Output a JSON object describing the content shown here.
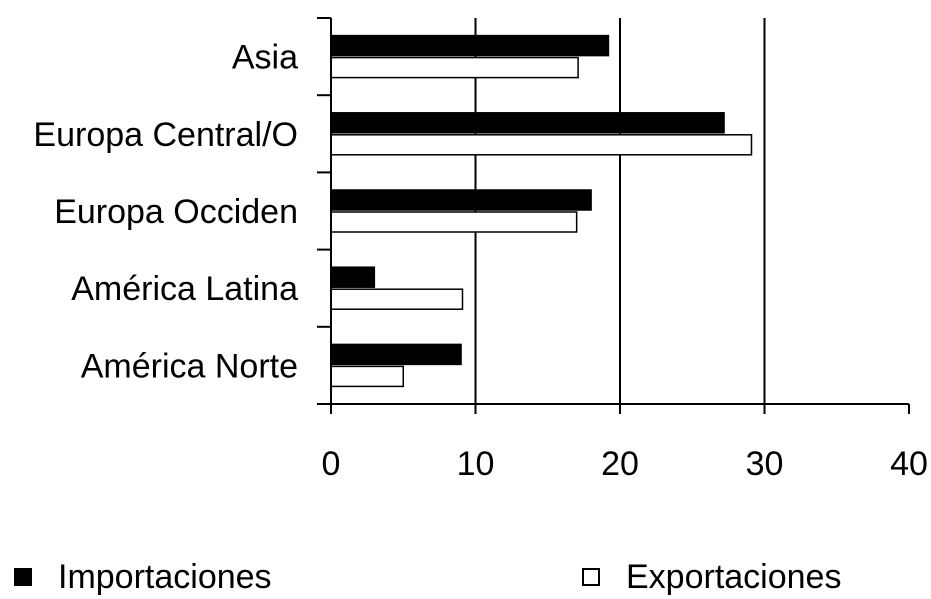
{
  "chart_data": {
    "type": "bar",
    "orientation": "horizontal",
    "categories": [
      "Asia",
      "Europa Central/O",
      "Europa Occiden",
      "América Latina",
      "América Norte"
    ],
    "series": [
      {
        "name": "Importaciones",
        "values": [
          19.2,
          27.2,
          18.0,
          3.0,
          9.0
        ],
        "color": "#000000"
      },
      {
        "name": "Exportaciones",
        "values": [
          17.1,
          29.1,
          17.0,
          9.1,
          5.0
        ],
        "color": "#ffffff"
      }
    ],
    "xlim": [
      0,
      40
    ],
    "xticks": [
      "0",
      "10",
      "20",
      "30",
      "40"
    ],
    "grid": "vertical lines at 10, 20, 30",
    "legend_position": "bottom"
  }
}
